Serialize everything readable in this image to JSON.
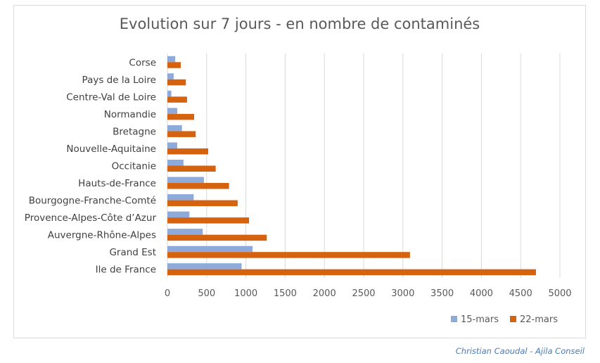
{
  "chart_data": {
    "type": "bar",
    "orientation": "horizontal",
    "title": "Evolution sur 7 jours - en nombre de contaminés",
    "categories": [
      "Corse",
      "Pays de la Loire",
      "Centre-Val de Loire",
      "Normandie",
      "Bretagne",
      "Nouvelle-Aquitaine",
      "Occitanie",
      "Hauts-de-France",
      "Bourgogne-Franche-Comté",
      "Provence-Alpes-Côte d’Azur",
      "Auvergne-Rhône-Alpes",
      "Grand Est",
      "Ile de France"
    ],
    "series": [
      {
        "name": "15-mars",
        "color": "#8eaadb",
        "values": [
          100,
          80,
          50,
          125,
          185,
          125,
          205,
          465,
          335,
          280,
          450,
          1085,
          945
        ]
      },
      {
        "name": "22-mars",
        "color": "#d4620f",
        "values": [
          170,
          235,
          250,
          340,
          360,
          520,
          615,
          785,
          895,
          1040,
          1265,
          3090,
          4695
        ]
      }
    ],
    "xlim": [
      0,
      5000
    ],
    "xticks": [
      0,
      500,
      1000,
      1500,
      2000,
      2500,
      3000,
      3500,
      4000,
      4500,
      5000
    ],
    "grid": true,
    "legend": "bottom-right"
  },
  "credit": "Christian Caoudal - Ajila Conseil"
}
